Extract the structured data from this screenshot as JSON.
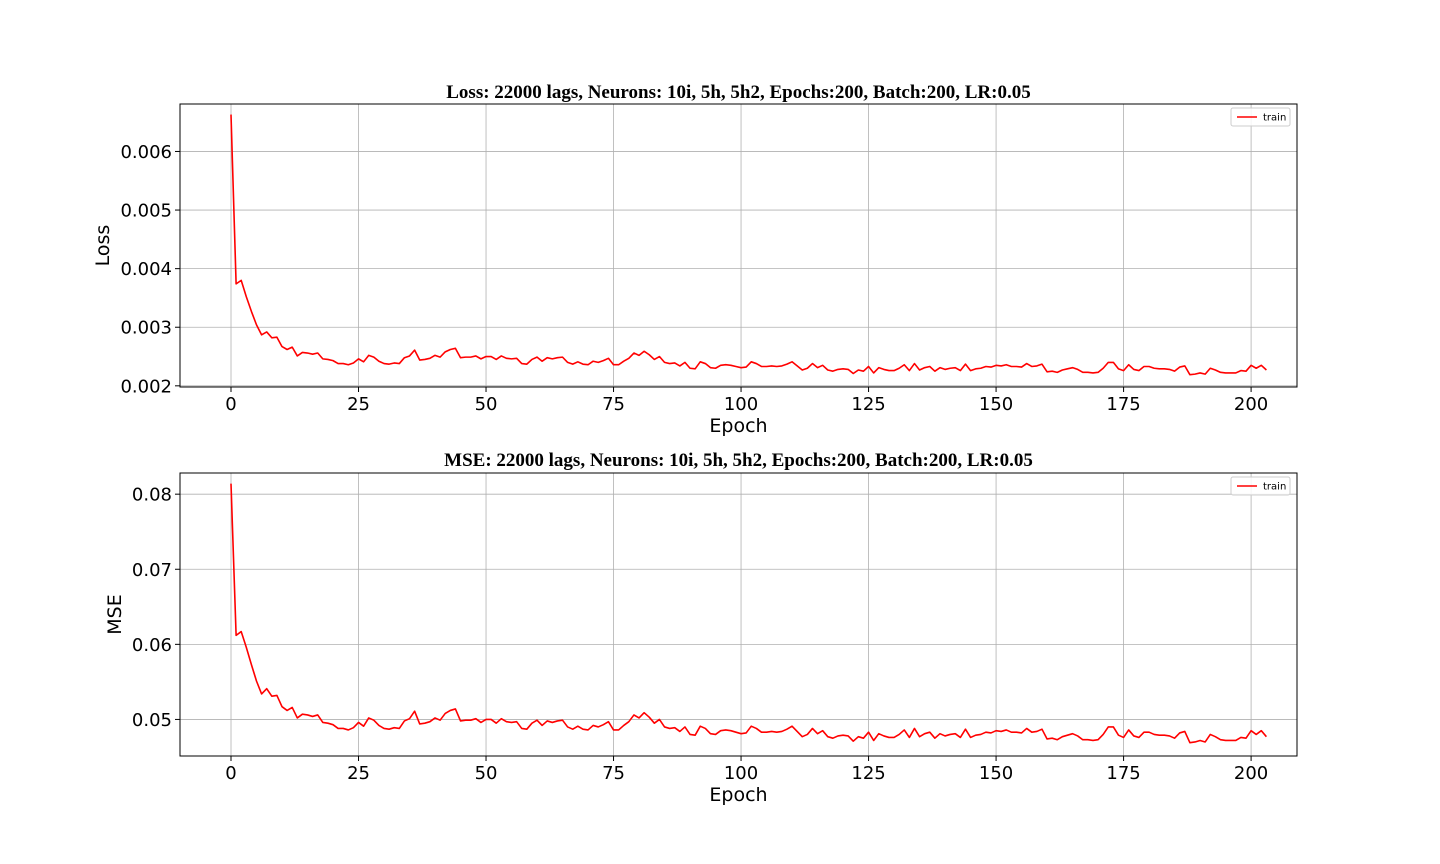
{
  "chart_data": [
    {
      "type": "line",
      "title": "Loss: 22000 lags, Neurons: 10i, 5h, 5h2, Epochs:200, Batch:200, LR:0.05",
      "xlabel": "Epoch",
      "ylabel": "Loss",
      "xlim": [
        -10,
        209
      ],
      "ylim": [
        0.00198,
        0.00681
      ],
      "xticks": [
        0,
        25,
        50,
        75,
        100,
        125,
        150,
        175,
        200
      ],
      "xtick_labels": [
        "0",
        "25",
        "50",
        "75",
        "100",
        "125",
        "150",
        "175",
        "200"
      ],
      "yticks": [
        0.002,
        0.003,
        0.004,
        0.005,
        0.006
      ],
      "ytick_labels": [
        "0.002",
        "0.003",
        "0.004",
        "0.005",
        "0.006"
      ],
      "grid": true,
      "legend": "top-right",
      "series": [
        {
          "name": "train",
          "color": "#ff0000",
          "x_start": 0,
          "x_step": 1,
          "values": [
            0.00663,
            0.00374,
            0.0038,
            0.00352,
            0.00327,
            0.00304,
            0.00287,
            0.00292,
            0.00282,
            0.00283,
            0.00267,
            0.00262,
            0.00266,
            0.00251,
            0.00257,
            0.00256,
            0.00254,
            0.00256,
            0.00246,
            0.00245,
            0.00243,
            0.00238,
            0.00238,
            0.00236,
            0.00239,
            0.00246,
            0.00241,
            0.00252,
            0.00249,
            0.00242,
            0.00238,
            0.00237,
            0.00239,
            0.00238,
            0.00248,
            0.00251,
            0.00261,
            0.00244,
            0.00245,
            0.00247,
            0.00252,
            0.00249,
            0.00258,
            0.00262,
            0.00264,
            0.00248,
            0.00249,
            0.00249,
            0.00251,
            0.00246,
            0.0025,
            0.0025,
            0.00245,
            0.00251,
            0.00247,
            0.00246,
            0.00247,
            0.00238,
            0.00237,
            0.00245,
            0.00249,
            0.00242,
            0.00248,
            0.00246,
            0.00248,
            0.00249,
            0.0024,
            0.00237,
            0.00241,
            0.00237,
            0.00236,
            0.00242,
            0.0024,
            0.00243,
            0.00247,
            0.00236,
            0.00236,
            0.00242,
            0.00247,
            0.00256,
            0.00252,
            0.00259,
            0.00253,
            0.00245,
            0.0025,
            0.0024,
            0.00238,
            0.00239,
            0.00234,
            0.0024,
            0.0023,
            0.00229,
            0.00241,
            0.00238,
            0.00231,
            0.0023,
            0.00235,
            0.00236,
            0.00235,
            0.00233,
            0.00231,
            0.00232,
            0.00241,
            0.00238,
            0.00233,
            0.00233,
            0.00234,
            0.00233,
            0.00234,
            0.00237,
            0.00241,
            0.00234,
            0.00227,
            0.0023,
            0.00238,
            0.00231,
            0.00235,
            0.00227,
            0.00225,
            0.00228,
            0.00229,
            0.00228,
            0.00221,
            0.00227,
            0.00225,
            0.00233,
            0.00222,
            0.00231,
            0.00228,
            0.00226,
            0.00226,
            0.0023,
            0.00236,
            0.00226,
            0.00238,
            0.00227,
            0.00231,
            0.00233,
            0.00225,
            0.00231,
            0.00228,
            0.0023,
            0.00231,
            0.00226,
            0.00237,
            0.00226,
            0.00229,
            0.0023,
            0.00233,
            0.00232,
            0.00235,
            0.00234,
            0.00236,
            0.00233,
            0.00233,
            0.00232,
            0.00238,
            0.00233,
            0.00234,
            0.00237,
            0.00224,
            0.00225,
            0.00223,
            0.00227,
            0.00229,
            0.00231,
            0.00228,
            0.00223,
            0.00223,
            0.00222,
            0.00223,
            0.0023,
            0.0024,
            0.0024,
            0.00229,
            0.00226,
            0.00236,
            0.00228,
            0.00226,
            0.00233,
            0.00233,
            0.0023,
            0.00229,
            0.00229,
            0.00228,
            0.00225,
            0.00232,
            0.00234,
            0.00219,
            0.0022,
            0.00222,
            0.0022,
            0.0023,
            0.00227,
            0.00223,
            0.00222,
            0.00222,
            0.00222,
            0.00226,
            0.00225,
            0.00235,
            0.0023,
            0.00235,
            0.00227
          ]
        }
      ]
    },
    {
      "type": "line",
      "title": "MSE: 22000 lags, Neurons: 10i, 5h, 5h2, Epochs:200, Batch:200, LR:0.05",
      "xlabel": "Epoch",
      "ylabel": "MSE",
      "xlim": [
        -10,
        209
      ],
      "ylim": [
        0.04513,
        0.08282
      ],
      "xticks": [
        0,
        25,
        50,
        75,
        100,
        125,
        150,
        175,
        200
      ],
      "xtick_labels": [
        "0",
        "25",
        "50",
        "75",
        "100",
        "125",
        "150",
        "175",
        "200"
      ],
      "yticks": [
        0.05,
        0.06,
        0.07,
        0.08
      ],
      "ytick_labels": [
        "0.05",
        "0.06",
        "0.07",
        "0.08"
      ],
      "grid": true,
      "legend": "top-right",
      "series": [
        {
          "name": "train",
          "color": "#ff0000",
          "x_start": 0,
          "x_step": 1,
          "values": [
            0.0814,
            0.0612,
            0.0617,
            0.0596,
            0.0573,
            0.0551,
            0.0534,
            0.0541,
            0.0531,
            0.0532,
            0.0517,
            0.0512,
            0.0516,
            0.0502,
            0.0507,
            0.0506,
            0.0504,
            0.0506,
            0.0496,
            0.0495,
            0.0493,
            0.0488,
            0.0488,
            0.0486,
            0.0489,
            0.0496,
            0.0491,
            0.0502,
            0.0499,
            0.0492,
            0.0488,
            0.0487,
            0.0489,
            0.0488,
            0.0498,
            0.0501,
            0.0511,
            0.0494,
            0.0495,
            0.0497,
            0.0502,
            0.0499,
            0.0508,
            0.0512,
            0.0514,
            0.0498,
            0.0499,
            0.0499,
            0.0501,
            0.0496,
            0.05,
            0.05,
            0.0495,
            0.0501,
            0.0497,
            0.0496,
            0.0497,
            0.0488,
            0.0487,
            0.0495,
            0.0499,
            0.0492,
            0.0498,
            0.0496,
            0.0498,
            0.0499,
            0.049,
            0.0487,
            0.0491,
            0.0487,
            0.0486,
            0.0492,
            0.049,
            0.0493,
            0.0497,
            0.0486,
            0.0486,
            0.0492,
            0.0497,
            0.0506,
            0.0502,
            0.0509,
            0.0503,
            0.0495,
            0.05,
            0.049,
            0.0488,
            0.0489,
            0.0484,
            0.049,
            0.048,
            0.0479,
            0.0491,
            0.0488,
            0.0481,
            0.048,
            0.0485,
            0.0486,
            0.0485,
            0.0483,
            0.0481,
            0.0482,
            0.0491,
            0.0488,
            0.0483,
            0.0483,
            0.0484,
            0.0483,
            0.0484,
            0.0487,
            0.0491,
            0.0484,
            0.0477,
            0.048,
            0.0488,
            0.0481,
            0.0485,
            0.0477,
            0.0475,
            0.0478,
            0.0479,
            0.0478,
            0.0471,
            0.0477,
            0.0475,
            0.0483,
            0.0472,
            0.0481,
            0.0478,
            0.0476,
            0.0476,
            0.048,
            0.0486,
            0.0476,
            0.0488,
            0.0477,
            0.0481,
            0.0483,
            0.0475,
            0.0481,
            0.0478,
            0.048,
            0.0481,
            0.0476,
            0.0487,
            0.0476,
            0.0479,
            0.048,
            0.0483,
            0.0482,
            0.0485,
            0.0484,
            0.0486,
            0.0483,
            0.0483,
            0.0482,
            0.0488,
            0.0483,
            0.0484,
            0.0487,
            0.0474,
            0.0475,
            0.0473,
            0.0477,
            0.0479,
            0.0481,
            0.0478,
            0.0473,
            0.0473,
            0.0472,
            0.0473,
            0.048,
            0.049,
            0.049,
            0.0479,
            0.0476,
            0.0486,
            0.0478,
            0.0476,
            0.0483,
            0.0483,
            0.048,
            0.0479,
            0.0479,
            0.0478,
            0.0475,
            0.0482,
            0.0484,
            0.0469,
            0.047,
            0.0472,
            0.047,
            0.048,
            0.0477,
            0.0473,
            0.0472,
            0.0472,
            0.0472,
            0.0476,
            0.0475,
            0.0485,
            0.048,
            0.0485,
            0.0477
          ]
        }
      ]
    }
  ]
}
